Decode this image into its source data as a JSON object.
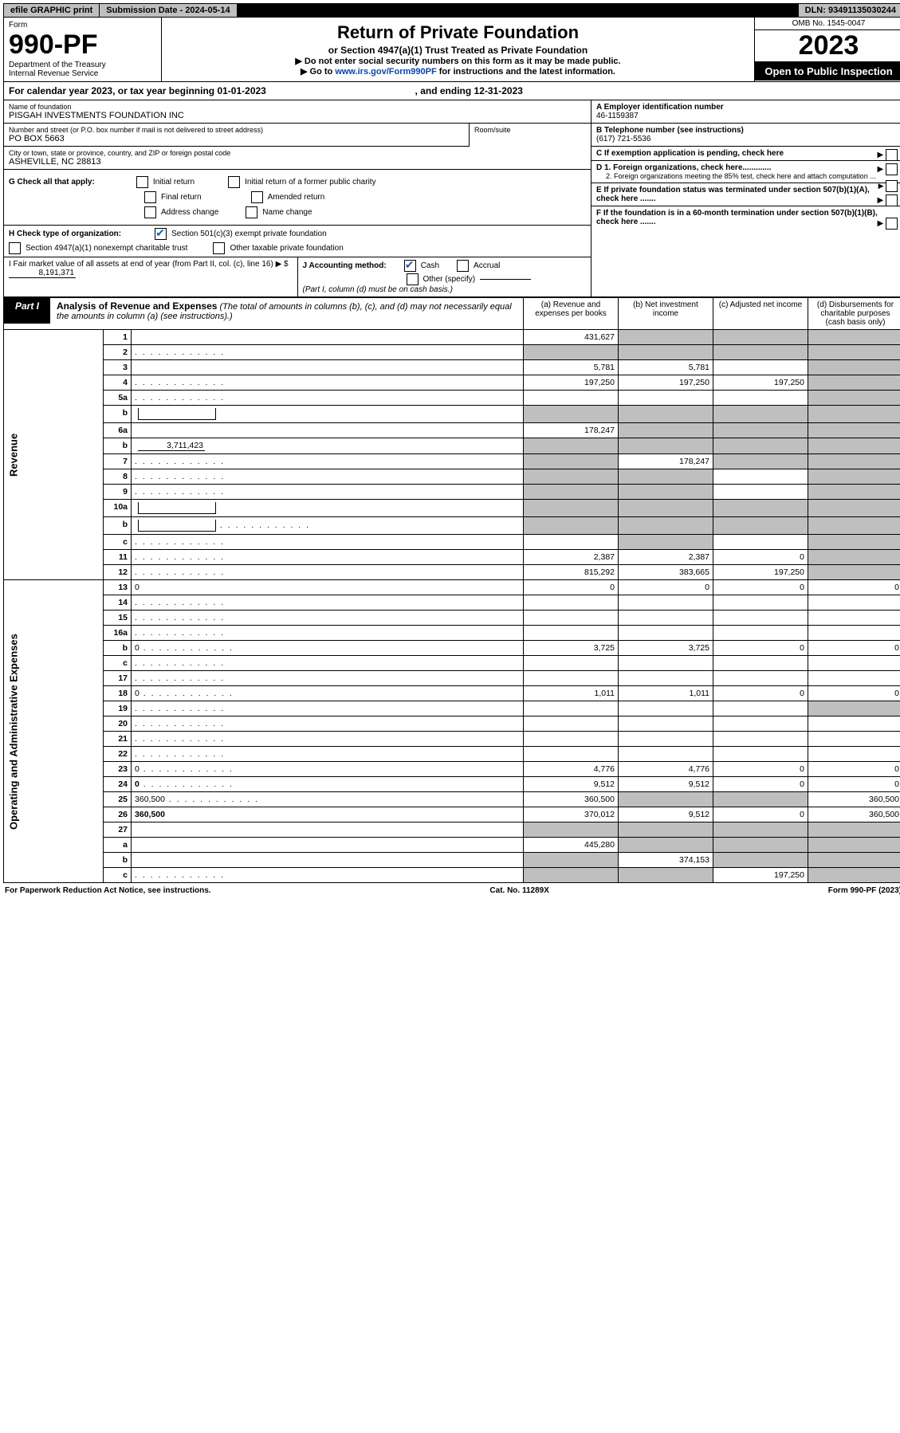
{
  "topbar": {
    "efile": "efile GRAPHIC print",
    "sub_label": "Submission Date - 2024-05-14",
    "dln": "DLN: 93491135030244"
  },
  "header": {
    "form_label": "Form",
    "form_no": "990-PF",
    "dept": "Department of the Treasury",
    "irs": "Internal Revenue Service",
    "title": "Return of Private Foundation",
    "subtitle": "or Section 4947(a)(1) Trust Treated as Private Foundation",
    "note1": "▶ Do not enter social security numbers on this form as it may be made public.",
    "note2_pre": "▶ Go to ",
    "note2_link": "www.irs.gov/Form990PF",
    "note2_post": " for instructions and the latest information.",
    "omb": "OMB No. 1545-0047",
    "year": "2023",
    "open": "Open to Public Inspection"
  },
  "cal": {
    "text_a": "For calendar year 2023, or tax year beginning ",
    "begin": "01-01-2023",
    "text_b": ", and ending ",
    "end": "12-31-2023"
  },
  "id": {
    "name_lab": "Name of foundation",
    "name": "PISGAH INVESTMENTS FOUNDATION INC",
    "addr_lab": "Number and street (or P.O. box number if mail is not delivered to street address)",
    "addr": "PO BOX 5663",
    "room_lab": "Room/suite",
    "room": "",
    "city_lab": "City or town, state or province, country, and ZIP or foreign postal code",
    "city": "ASHEVILLE, NC  28813",
    "ein_lab": "A Employer identification number",
    "ein": "46-1159387",
    "tel_lab": "B Telephone number (see instructions)",
    "tel": "(617) 721-5536",
    "c_lab": "C If exemption application is pending, check here",
    "d1": "D 1. Foreign organizations, check here.............",
    "d2": "2. Foreign organizations meeting the 85% test, check here and attach computation ...",
    "e": "E   If private foundation status was terminated under section 507(b)(1)(A), check here .......",
    "f": "F   If the foundation is in a 60-month termination under section 507(b)(1)(B), check here ......."
  },
  "g": {
    "label": "G Check all that apply:",
    "opts": [
      "Initial return",
      "Initial return of a former public charity",
      "Final return",
      "Amended return",
      "Address change",
      "Name change"
    ]
  },
  "h": {
    "label": "H Check type of organization:",
    "o1": "Section 501(c)(3) exempt private foundation",
    "o2": "Section 4947(a)(1) nonexempt charitable trust",
    "o3": "Other taxable private foundation"
  },
  "i": {
    "label": "I Fair market value of all assets at end of year (from Part II, col. (c), line 16) ▶ $",
    "val": "8,191,371"
  },
  "j": {
    "label": "J Accounting method:",
    "cash": "Cash",
    "accrual": "Accrual",
    "other": "Other (specify)",
    "note": "(Part I, column (d) must be on cash basis.)"
  },
  "part1": {
    "tag": "Part I",
    "title": "Analysis of Revenue and Expenses",
    "title_note": " (The total of amounts in columns (b), (c), and (d) may not necessarily equal the amounts in column (a) (see instructions).)",
    "cols": {
      "a": "(a)    Revenue and expenses per books",
      "b": "(b)    Net investment income",
      "c": "(c)    Adjusted net income",
      "d": "(d)    Disbursements for charitable purposes (cash basis only)"
    }
  },
  "rev_label": "Revenue",
  "exp_label": "Operating and Administrative Expenses",
  "rows": [
    {
      "n": "1",
      "d": "",
      "a": "431,627",
      "b": "",
      "c": "",
      "shade_b": true,
      "shade_c": true,
      "shade_d": true
    },
    {
      "n": "2",
      "d": "",
      "dots": true,
      "a": "",
      "b": "",
      "c": "",
      "shade_all": true
    },
    {
      "n": "3",
      "d": "",
      "a": "5,781",
      "b": "5,781",
      "c": "",
      "shade_d": true
    },
    {
      "n": "4",
      "d": "",
      "dots": true,
      "a": "197,250",
      "b": "197,250",
      "c": "197,250",
      "shade_d": true
    },
    {
      "n": "5a",
      "d": "",
      "dots": true,
      "a": "",
      "b": "",
      "c": "",
      "shade_d": true
    },
    {
      "n": "b",
      "d": "",
      "inline": "",
      "a": "",
      "b": "",
      "c": "",
      "shade_all": true
    },
    {
      "n": "6a",
      "d": "",
      "a": "178,247",
      "b": "",
      "c": "",
      "shade_b": true,
      "shade_c": true,
      "shade_d": true
    },
    {
      "n": "b",
      "d": "",
      "inline": "3,711,423",
      "a": "",
      "b": "",
      "c": "",
      "shade_all": true
    },
    {
      "n": "7",
      "d": "",
      "dots": true,
      "a": "",
      "b": "178,247",
      "c": "",
      "shade_a": true,
      "shade_c": true,
      "shade_d": true
    },
    {
      "n": "8",
      "d": "",
      "dots": true,
      "a": "",
      "b": "",
      "c": "",
      "shade_a": true,
      "shade_b": true,
      "shade_d": true
    },
    {
      "n": "9",
      "d": "",
      "dots": true,
      "a": "",
      "b": "",
      "c": "",
      "shade_a": true,
      "shade_b": true,
      "shade_d": true
    },
    {
      "n": "10a",
      "d": "",
      "inline": "",
      "a": "",
      "b": "",
      "c": "",
      "shade_all": true
    },
    {
      "n": "b",
      "d": "",
      "dots": true,
      "inline": "",
      "a": "",
      "b": "",
      "c": "",
      "shade_all": true
    },
    {
      "n": "c",
      "d": "",
      "dots": true,
      "a": "",
      "b": "",
      "c": "",
      "shade_b": true,
      "shade_d": true
    },
    {
      "n": "11",
      "d": "",
      "dots": true,
      "a": "2,387",
      "b": "2,387",
      "c": "0",
      "shade_d": true
    },
    {
      "n": "12",
      "d": "",
      "dots": true,
      "bold": true,
      "a": "815,292",
      "b": "383,665",
      "c": "197,250",
      "shade_d": true
    }
  ],
  "exp_rows": [
    {
      "n": "13",
      "d": "0",
      "a": "0",
      "b": "0",
      "c": "0"
    },
    {
      "n": "14",
      "d": "",
      "dots": true,
      "a": "",
      "b": "",
      "c": ""
    },
    {
      "n": "15",
      "d": "",
      "dots": true,
      "a": "",
      "b": "",
      "c": ""
    },
    {
      "n": "16a",
      "d": "",
      "dots": true,
      "a": "",
      "b": "",
      "c": ""
    },
    {
      "n": "b",
      "d": "0",
      "dots": true,
      "a": "3,725",
      "b": "3,725",
      "c": "0"
    },
    {
      "n": "c",
      "d": "",
      "dots": true,
      "a": "",
      "b": "",
      "c": ""
    },
    {
      "n": "17",
      "d": "",
      "dots": true,
      "a": "",
      "b": "",
      "c": ""
    },
    {
      "n": "18",
      "d": "0",
      "dots": true,
      "a": "1,011",
      "b": "1,011",
      "c": "0"
    },
    {
      "n": "19",
      "d": "",
      "dots": true,
      "a": "",
      "b": "",
      "c": "",
      "shade_d": true
    },
    {
      "n": "20",
      "d": "",
      "dots": true,
      "a": "",
      "b": "",
      "c": ""
    },
    {
      "n": "21",
      "d": "",
      "dots": true,
      "a": "",
      "b": "",
      "c": ""
    },
    {
      "n": "22",
      "d": "",
      "dots": true,
      "a": "",
      "b": "",
      "c": ""
    },
    {
      "n": "23",
      "d": "0",
      "dots": true,
      "a": "4,776",
      "b": "4,776",
      "c": "0"
    },
    {
      "n": "24",
      "d": "0",
      "dots": true,
      "bold": true,
      "a": "9,512",
      "b": "9,512",
      "c": "0"
    },
    {
      "n": "25",
      "d": "360,500",
      "dots": true,
      "a": "360,500",
      "b": "",
      "c": "",
      "shade_b": true,
      "shade_c": true
    },
    {
      "n": "26",
      "d": "360,500",
      "bold": true,
      "a": "370,012",
      "b": "9,512",
      "c": "0"
    },
    {
      "n": "27",
      "d": "",
      "a": "",
      "b": "",
      "c": "",
      "shade_all": true
    },
    {
      "n": "a",
      "d": "",
      "bold": true,
      "a": "445,280",
      "b": "",
      "c": "",
      "shade_b": true,
      "shade_c": true,
      "shade_d": true
    },
    {
      "n": "b",
      "d": "",
      "bold": true,
      "a": "",
      "b": "374,153",
      "c": "",
      "shade_a": true,
      "shade_c": true,
      "shade_d": true
    },
    {
      "n": "c",
      "d": "",
      "dots": true,
      "bold": true,
      "a": "",
      "b": "",
      "c": "197,250",
      "shade_a": true,
      "shade_b": true,
      "shade_d": true
    }
  ],
  "footer": {
    "pra": "For Paperwork Reduction Act Notice, see instructions.",
    "cat": "Cat. No. 11289X",
    "form": "Form 990-PF (2023)"
  }
}
